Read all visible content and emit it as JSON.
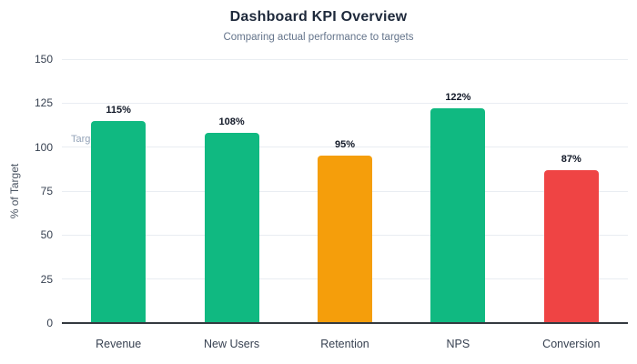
{
  "chart_data": {
    "type": "bar",
    "title": "Dashboard KPI Overview",
    "subtitle": "Comparing actual performance to targets",
    "xlabel": "",
    "ylabel": "% of Target",
    "categories": [
      "Revenue",
      "New Users",
      "Retention",
      "NPS",
      "Conversion"
    ],
    "values": [
      115,
      108,
      95,
      122,
      87
    ],
    "value_labels": [
      "115%",
      "108%",
      "95%",
      "122%",
      "87%"
    ],
    "bar_colors": [
      "#10b981",
      "#10b981",
      "#f59e0b",
      "#10b981",
      "#ef4444"
    ],
    "ylim": [
      0,
      150
    ],
    "yticks": [
      0,
      25,
      50,
      75,
      100,
      125,
      150
    ],
    "grid": true,
    "legend": false,
    "annotations": [
      {
        "text": "Target",
        "y": 100
      }
    ],
    "colors": {
      "green": "#10b981",
      "amber": "#f59e0b",
      "red": "#ef4444",
      "title_text": "#1e293b",
      "subtitle_text": "#64748b",
      "axis_line": "#343a40",
      "gridline": "#e9edf2",
      "tick_text": "#374151",
      "value_label_text": "#111827",
      "annotation_text": "#94a3b8"
    }
  }
}
